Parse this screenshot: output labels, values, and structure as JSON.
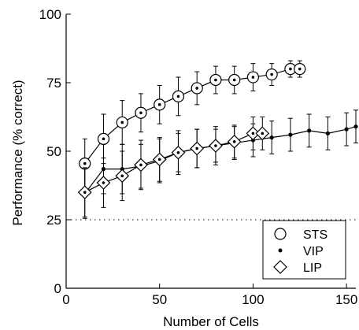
{
  "chart_data": {
    "type": "line",
    "xlabel": "Number of Cells",
    "ylabel": "Performance (% correct)",
    "xlim": [
      0,
      155
    ],
    "ylim": [
      0,
      100
    ],
    "xticks": [
      0,
      50,
      100,
      150
    ],
    "yticks": [
      0,
      25,
      50,
      75,
      100
    ],
    "tick_labels_x": [
      "0",
      "50",
      "100",
      "150"
    ],
    "tick_labels_y": [
      "0",
      "25",
      "50",
      "75",
      "100"
    ],
    "chance_level": 25,
    "grid": false,
    "legend_position": "bottom-right",
    "series": [
      {
        "name": "STS",
        "marker": "circle",
        "x": [
          10,
          20,
          30,
          40,
          50,
          60,
          70,
          80,
          90,
          100,
          110,
          120,
          125
        ],
        "y": [
          45.5,
          54.5,
          60.5,
          64,
          67,
          70,
          73,
          76,
          76,
          77,
          78,
          80,
          80
        ],
        "err": [
          9,
          9,
          8,
          7,
          7,
          7,
          6,
          5,
          5,
          5,
          4,
          3,
          3
        ]
      },
      {
        "name": "VIP",
        "marker": "dot",
        "x": [
          10,
          20,
          30,
          40,
          50,
          60,
          70,
          80,
          90,
          100,
          110,
          120,
          130,
          140,
          150,
          155
        ],
        "y": [
          34.5,
          43.5,
          43.5,
          44.5,
          46.5,
          49.5,
          51,
          52,
          53,
          54,
          55,
          56,
          57.5,
          56.5,
          58,
          59
        ],
        "err": [
          9,
          9,
          9,
          8,
          8,
          7,
          7,
          6,
          6,
          6,
          6,
          6,
          6,
          6,
          6,
          6
        ]
      },
      {
        "name": "LIP",
        "marker": "diamond",
        "x": [
          10,
          20,
          30,
          40,
          50,
          60,
          70,
          80,
          90,
          100,
          105
        ],
        "y": [
          35,
          38.5,
          41,
          45,
          47,
          49.5,
          51,
          52,
          53.5,
          56.5,
          56.5
        ],
        "err": [
          9,
          9,
          9,
          9,
          8,
          8,
          7,
          7,
          6,
          6,
          6
        ]
      }
    ]
  }
}
